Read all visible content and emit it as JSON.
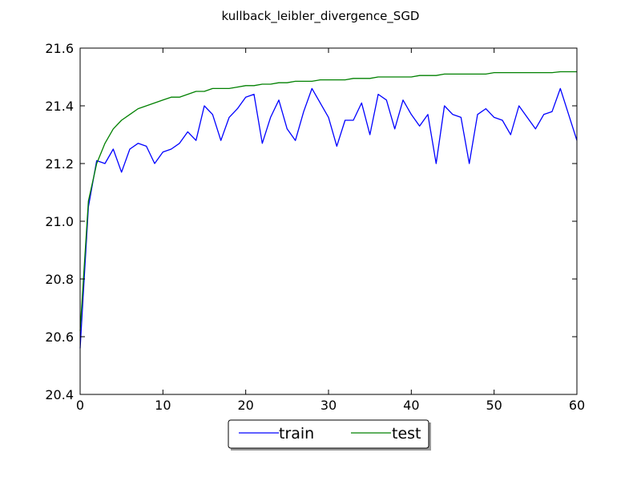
{
  "chart_data": {
    "type": "line",
    "title": "kullback_leibler_divergence_SGD",
    "xlabel": "",
    "ylabel": "",
    "xlim": [
      0,
      60
    ],
    "ylim": [
      20.4,
      21.6
    ],
    "x_ticks": [
      "0",
      "10",
      "20",
      "30",
      "40",
      "50",
      "60"
    ],
    "y_ticks": [
      "20.4",
      "20.6",
      "20.8",
      "21.0",
      "21.2",
      "21.4",
      "21.6"
    ],
    "grid": false,
    "legend_position": "bottom-center-outside",
    "series": [
      {
        "name": "train",
        "color": "#0000ff",
        "x": [
          0,
          1,
          2,
          3,
          4,
          5,
          6,
          7,
          8,
          9,
          10,
          11,
          12,
          13,
          14,
          15,
          16,
          17,
          18,
          19,
          20,
          21,
          22,
          23,
          24,
          25,
          26,
          27,
          28,
          29,
          30,
          31,
          32,
          33,
          34,
          35,
          36,
          37,
          38,
          39,
          40,
          41,
          42,
          43,
          44,
          45,
          46,
          47,
          48,
          49,
          50,
          51,
          52,
          53,
          54,
          55,
          56,
          57,
          58,
          59,
          60
        ],
        "values": [
          20.56,
          21.05,
          21.21,
          21.2,
          21.25,
          21.17,
          21.25,
          21.27,
          21.26,
          21.2,
          21.24,
          21.25,
          21.27,
          21.31,
          21.28,
          21.4,
          21.37,
          21.28,
          21.36,
          21.39,
          21.43,
          21.44,
          21.27,
          21.36,
          21.42,
          21.32,
          21.28,
          21.38,
          21.46,
          21.41,
          21.36,
          21.26,
          21.35,
          21.35,
          21.41,
          21.3,
          21.44,
          21.42,
          21.32,
          21.42,
          21.37,
          21.33,
          21.37,
          21.2,
          21.4,
          21.37,
          21.36,
          21.2,
          21.37,
          21.39,
          21.36,
          21.35,
          21.3,
          21.4,
          21.36,
          21.32,
          21.37,
          21.38,
          21.46,
          21.37,
          21.28
        ]
      },
      {
        "name": "test",
        "color": "#008000",
        "x": [
          0,
          1,
          2,
          3,
          4,
          5,
          6,
          7,
          8,
          9,
          10,
          11,
          12,
          13,
          14,
          15,
          16,
          17,
          18,
          19,
          20,
          21,
          22,
          23,
          24,
          25,
          26,
          27,
          28,
          29,
          30,
          31,
          32,
          33,
          34,
          35,
          36,
          37,
          38,
          39,
          40,
          41,
          42,
          43,
          44,
          45,
          46,
          47,
          48,
          49,
          50,
          51,
          52,
          53,
          54,
          55,
          56,
          57,
          58,
          59,
          60
        ],
        "values": [
          20.62,
          21.07,
          21.2,
          21.27,
          21.32,
          21.35,
          21.37,
          21.39,
          21.4,
          21.41,
          21.42,
          21.43,
          21.43,
          21.44,
          21.45,
          21.45,
          21.46,
          21.46,
          21.46,
          21.465,
          21.47,
          21.47,
          21.475,
          21.475,
          21.48,
          21.48,
          21.485,
          21.485,
          21.485,
          21.49,
          21.49,
          21.49,
          21.49,
          21.495,
          21.495,
          21.495,
          21.5,
          21.5,
          21.5,
          21.5,
          21.5,
          21.505,
          21.505,
          21.505,
          21.51,
          21.51,
          21.51,
          21.51,
          21.51,
          21.51,
          21.515,
          21.515,
          21.515,
          21.515,
          21.515,
          21.515,
          21.515,
          21.515,
          21.518,
          21.518,
          21.518
        ]
      }
    ]
  }
}
